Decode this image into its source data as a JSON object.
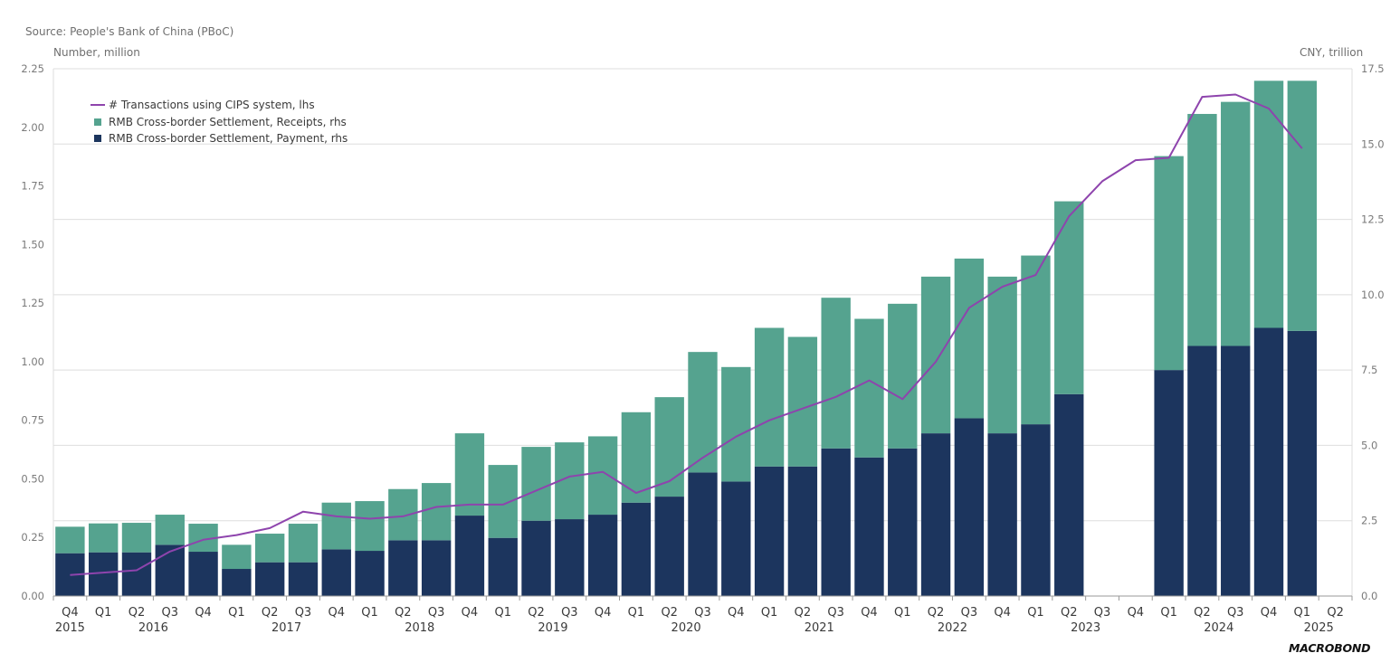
{
  "header": {
    "source": "Source: People's Bank of China (PBoC)",
    "lhs_unit": "Number, million",
    "rhs_unit": "CNY, trillion"
  },
  "legend": {
    "line_label": "# Transactions using CIPS system, lhs",
    "receipts_label": "RMB Cross-border Settlement, Receipts, rhs",
    "payment_label": "RMB Cross-border Settlement, Payment, rhs"
  },
  "logo": "MACROBOND",
  "colors": {
    "line": "#8e44ad",
    "receipts": "#55a38f",
    "payment": "#1c355e",
    "grid": "#dedede",
    "axis_text": "#7a7a7a"
  },
  "chart_data": {
    "type": "bar",
    "stacked": true,
    "categories": [
      "Q4",
      "Q1",
      "Q2",
      "Q3",
      "Q4",
      "Q1",
      "Q2",
      "Q3",
      "Q4",
      "Q1",
      "Q2",
      "Q3",
      "Q4",
      "Q1",
      "Q2",
      "Q3",
      "Q4",
      "Q1",
      "Q2",
      "Q3",
      "Q4",
      "Q1",
      "Q2",
      "Q3",
      "Q4",
      "Q1",
      "Q2",
      "Q3",
      "Q4",
      "Q1",
      "Q2",
      "Q3",
      "Q4",
      "Q1",
      "Q2",
      "Q3",
      "Q4",
      "Q1",
      "Q2"
    ],
    "years": [
      {
        "label": "2015",
        "start": 0,
        "end": 0
      },
      {
        "label": "2016",
        "start": 1,
        "end": 4
      },
      {
        "label": "2017",
        "start": 5,
        "end": 8
      },
      {
        "label": "2018",
        "start": 9,
        "end": 12
      },
      {
        "label": "2019",
        "start": 13,
        "end": 16
      },
      {
        "label": "2020",
        "start": 17,
        "end": 20
      },
      {
        "label": "2021",
        "start": 21,
        "end": 24
      },
      {
        "label": "2022",
        "start": 25,
        "end": 28
      },
      {
        "label": "2023",
        "start": 29,
        "end": 32
      },
      {
        "label": "2024",
        "start": 33,
        "end": 36
      },
      {
        "label": "2025",
        "start": 37,
        "end": 38
      }
    ],
    "series": [
      {
        "name": "RMB Cross-border Settlement, Payment, rhs",
        "axis": "right",
        "values": [
          1.42,
          1.45,
          1.45,
          1.7,
          1.47,
          0.9,
          1.12,
          1.12,
          1.55,
          1.5,
          1.85,
          1.85,
          2.67,
          1.93,
          2.5,
          2.55,
          2.7,
          3.1,
          3.3,
          4.1,
          3.8,
          4.3,
          4.3,
          4.9,
          4.6,
          4.9,
          5.4,
          5.9,
          5.4,
          5.7,
          6.7,
          null,
          null,
          7.5,
          8.3,
          8.3,
          8.9,
          8.8,
          null
        ]
      },
      {
        "name": "RMB Cross-border Settlement, Receipts, rhs",
        "axis": "right",
        "values": [
          0.88,
          0.96,
          0.98,
          1.0,
          0.93,
          0.8,
          0.95,
          1.28,
          1.55,
          1.65,
          1.7,
          1.9,
          2.73,
          2.42,
          2.45,
          2.55,
          2.6,
          3.0,
          3.3,
          4.0,
          3.8,
          4.6,
          4.3,
          5.0,
          4.6,
          4.8,
          5.2,
          5.3,
          5.2,
          5.6,
          6.4,
          null,
          null,
          7.1,
          7.7,
          8.1,
          8.2,
          8.3,
          null
        ]
      },
      {
        "name": "# Transactions using CIPS system, lhs",
        "axis": "left",
        "type": "line",
        "values": [
          0.09,
          0.1,
          0.11,
          0.19,
          0.24,
          0.26,
          0.29,
          0.36,
          0.34,
          0.33,
          0.34,
          0.38,
          0.39,
          0.39,
          0.45,
          0.51,
          0.53,
          0.44,
          0.49,
          0.59,
          0.68,
          0.75,
          0.8,
          0.85,
          0.92,
          0.84,
          1.0,
          1.23,
          1.32,
          1.37,
          1.62,
          1.77,
          1.86,
          1.87,
          2.13,
          2.14,
          2.08,
          1.91,
          null
        ]
      }
    ],
    "ylim_left": [
      0,
      2.25
    ],
    "yticks_left": [
      "0.00",
      "0.25",
      "0.50",
      "0.75",
      "1.00",
      "1.25",
      "1.50",
      "1.75",
      "2.00",
      "2.25"
    ],
    "ylim_right": [
      0,
      17.5
    ],
    "yticks_right": [
      "0.0",
      "2.5",
      "5.0",
      "7.5",
      "10.0",
      "12.5",
      "15.0",
      "17.5"
    ],
    "grid": true,
    "legend_position": "top-left"
  }
}
